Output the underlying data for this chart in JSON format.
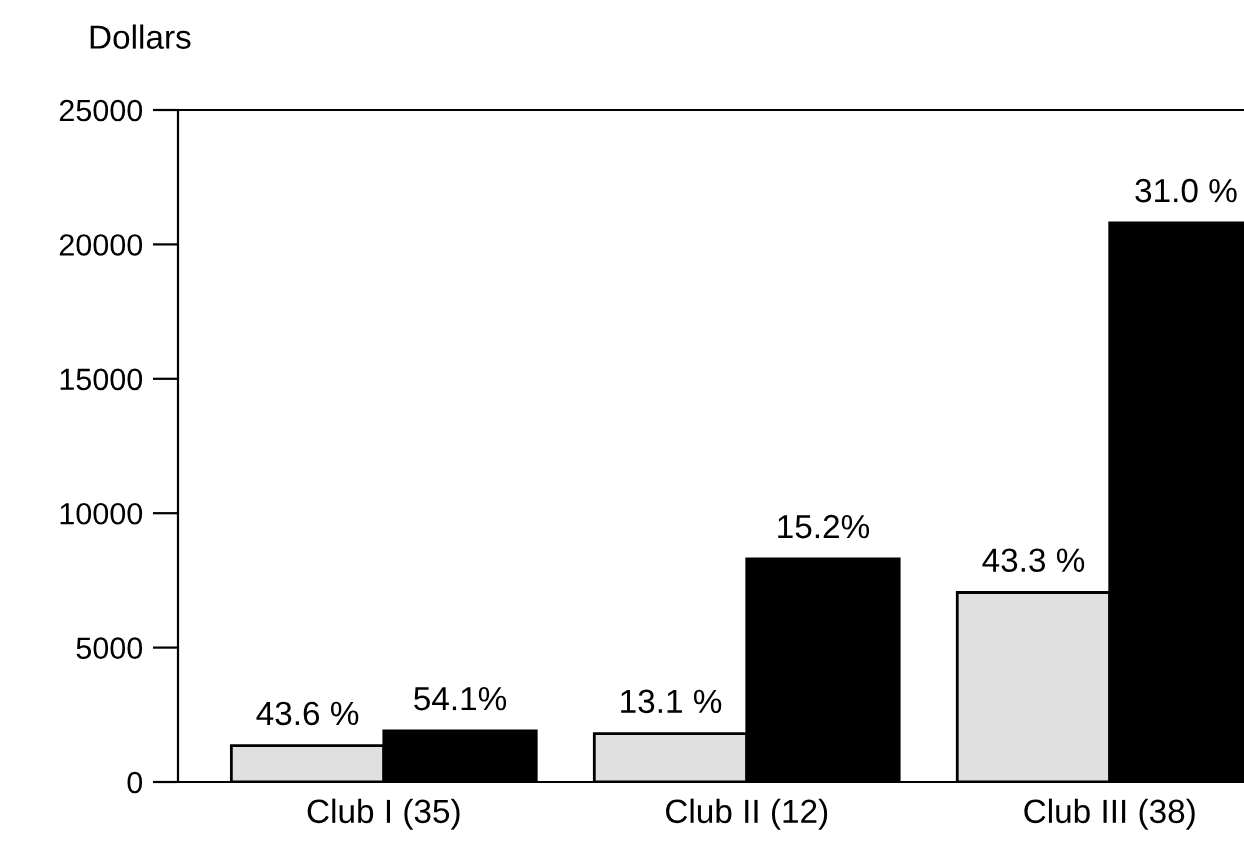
{
  "chart_data": {
    "type": "bar",
    "ylabel": "Dollars",
    "categories": [
      "Club I (35)",
      "Club II (12)",
      "Club III (38)"
    ],
    "series": [
      {
        "color": "#e0e0e0",
        "values": [
          1350,
          1800,
          7050
        ]
      },
      {
        "color": "#000000",
        "values": [
          1900,
          8300,
          20800
        ]
      }
    ],
    "annotations": [
      {
        "text": "43.6 %",
        "x": "Club I (35)",
        "y": 1350
      },
      {
        "text": "54.1%",
        "x": "Club I (35)",
        "y": 1900
      },
      {
        "text": "13.1 %",
        "x": "Club II (12)",
        "y": 1800
      },
      {
        "text": "15.2%",
        "x": "Club II (12)",
        "y": 8300
      },
      {
        "text": "43.3 %",
        "x": "Club III (38)",
        "y": 7050
      },
      {
        "text": "31.0 %",
        "x": "Club III (38)",
        "y": 20800
      }
    ],
    "ylim": [
      0,
      25000
    ],
    "yticks": [
      0,
      5000,
      10000,
      15000,
      20000,
      25000
    ],
    "grid": false,
    "legend": false
  }
}
